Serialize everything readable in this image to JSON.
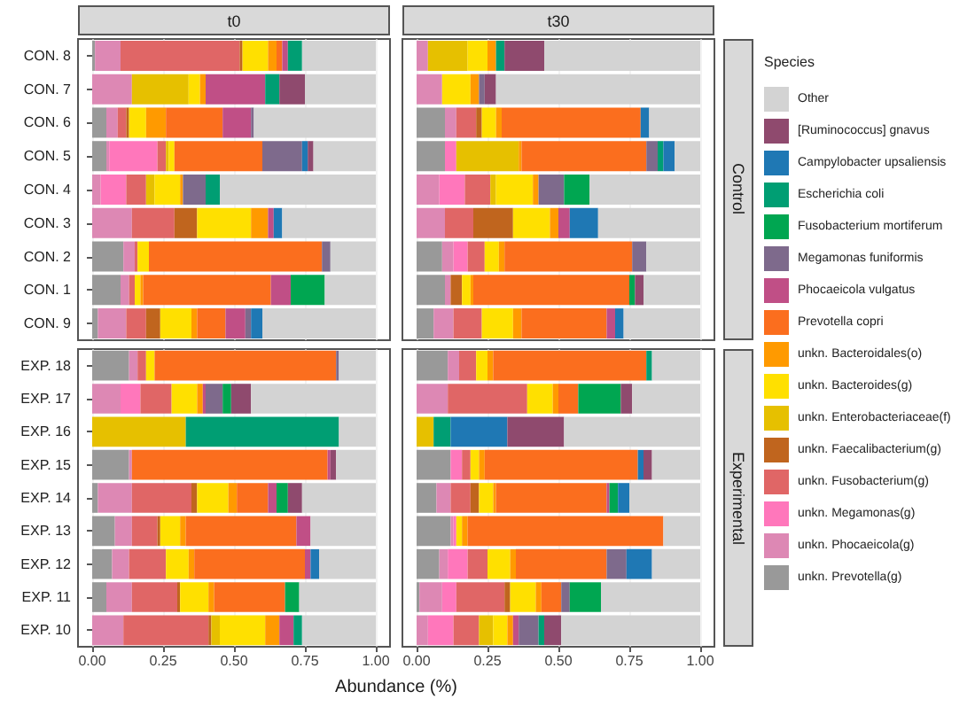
{
  "chart_data": [
    {
      "type": "bar",
      "orientation": "horizontal",
      "stacked": true,
      "title": "t0",
      "legend": "right",
      "legend_title": "Species",
      "grid": "x",
      "tick_labels": "y",
      "xlim": [
        -0.05,
        1.05
      ],
      "xticks": [
        0,
        0.25,
        0.5,
        0.75,
        1
      ],
      "categories": [
        "CON. 8",
        "CON. 7",
        "CON. 6",
        "CON. 5",
        "CON. 4",
        "CON. 3",
        "CON. 2",
        "CON. 1",
        "CON. 9"
      ],
      "series": [
        {
          "name": "unkn. Prevotella(g)",
          "color": "#999999",
          "values": [
            0.01,
            0,
            0.05,
            0.05,
            0,
            0,
            0.11,
            0.1,
            0.02
          ]
        },
        {
          "name": "unkn. Phocaeicola(g)",
          "color": "#dd88b4",
          "values": [
            0.09,
            0.14,
            0.04,
            0.01,
            0.03,
            0.14,
            0.04,
            0.03,
            0.1
          ]
        },
        {
          "name": "unkn. Megamonas(g)",
          "color": "#ff77bb",
          "values": [
            0,
            0,
            0,
            0.17,
            0.09,
            0,
            0,
            0,
            0
          ]
        },
        {
          "name": "unkn. Fusobacterium(g)",
          "color": "#e06666",
          "values": [
            0.42,
            0,
            0.03,
            0.03,
            0.07,
            0.15,
            0.01,
            0.02,
            0.07
          ]
        },
        {
          "name": "unkn. Faecalibacterium(g)",
          "color": "#c0651e",
          "values": [
            0.01,
            0,
            0.01,
            0,
            0,
            0.08,
            0,
            0,
            0.05
          ]
        },
        {
          "name": "unkn. Enterobacteriaceae(f)",
          "color": "#e6c000",
          "values": [
            0,
            0.2,
            0,
            0.01,
            0.03,
            0,
            0,
            0,
            0
          ]
        },
        {
          "name": "unkn. Bacteroides(g)",
          "color": "#ffe000",
          "values": [
            0.09,
            0.04,
            0.06,
            0.02,
            0.09,
            0.19,
            0.04,
            0.02,
            0.11
          ]
        },
        {
          "name": "unkn. Bacteroidales(o)",
          "color": "#ff9a00",
          "values": [
            0.03,
            0.02,
            0.07,
            0,
            0.01,
            0.06,
            0,
            0.01,
            0.02
          ]
        },
        {
          "name": "Prevotella copri",
          "color": "#fb6e1e",
          "values": [
            0.02,
            0,
            0.2,
            0.31,
            0,
            0,
            0.61,
            0.45,
            0.1
          ]
        },
        {
          "name": "Phocaeicola vulgatus",
          "color": "#c04f86",
          "values": [
            0.02,
            0.21,
            0.1,
            0,
            0,
            0.02,
            0,
            0.07,
            0.07
          ]
        },
        {
          "name": "Megamonas funiformis",
          "color": "#7e6a8c",
          "values": [
            0,
            0,
            0.01,
            0.14,
            0.08,
            0,
            0.03,
            0,
            0.02
          ]
        },
        {
          "name": "Fusobacterium mortiferum",
          "color": "#00a651",
          "values": [
            0,
            0,
            0,
            0,
            0,
            0,
            0,
            0.12,
            0
          ]
        },
        {
          "name": "Escherichia coli",
          "color": "#009e73",
          "values": [
            0.05,
            0.05,
            0,
            0,
            0.05,
            0,
            0,
            0,
            0
          ]
        },
        {
          "name": "Campylobacter upsaliensis",
          "color": "#1f78b4",
          "values": [
            0,
            0,
            0,
            0.02,
            0,
            0.03,
            0,
            0,
            0.04
          ]
        },
        {
          "name": "[Ruminococcus] gnavus",
          "color": "#8f4a6e",
          "values": [
            0,
            0.09,
            0,
            0.02,
            0,
            0,
            0,
            0,
            0
          ]
        },
        {
          "name": "Other",
          "color": "#d3d3d3",
          "values": [
            0.26,
            0.25,
            0.43,
            0.22,
            0.55,
            0.33,
            0.16,
            0.18,
            0.4
          ]
        }
      ]
    },
    {
      "type": "bar",
      "orientation": "horizontal",
      "stacked": true,
      "title": "t30",
      "annotations": [
        "Control"
      ],
      "grid": "x",
      "tick_labels": false,
      "xlim": [
        -0.05,
        1.05
      ],
      "xticks": [
        0,
        0.25,
        0.5,
        0.75,
        1
      ],
      "categories": [
        null,
        null,
        null,
        null,
        null,
        null,
        null,
        null,
        null
      ],
      "series": [
        {
          "name": "unkn. Prevotella(g)",
          "color": "#999999",
          "values": [
            0,
            0,
            0.1,
            0.1,
            0,
            0,
            0.09,
            0.1,
            0.06
          ]
        },
        {
          "name": "unkn. Phocaeicola(g)",
          "color": "#dd88b4",
          "values": [
            0.04,
            0.09,
            0.04,
            0,
            0.08,
            0.1,
            0.04,
            0.02,
            0.07
          ]
        },
        {
          "name": "unkn. Megamonas(g)",
          "color": "#ff77bb",
          "values": [
            0,
            0,
            0,
            0.04,
            0.09,
            0,
            0.05,
            0,
            0
          ]
        },
        {
          "name": "unkn. Fusobacterium(g)",
          "color": "#e06666",
          "values": [
            0,
            0,
            0.07,
            0,
            0.09,
            0.1,
            0.06,
            0,
            0.1
          ]
        },
        {
          "name": "unkn. Faecalibacterium(g)",
          "color": "#c0651e",
          "values": [
            0,
            0,
            0.02,
            0,
            0,
            0.14,
            0,
            0.04,
            0
          ]
        },
        {
          "name": "unkn. Enterobacteriaceae(f)",
          "color": "#e6c000",
          "values": [
            0.14,
            0,
            0,
            0.22,
            0.02,
            0,
            0,
            0,
            0
          ]
        },
        {
          "name": "unkn. Bacteroides(g)",
          "color": "#ffe000",
          "values": [
            0.07,
            0.1,
            0.05,
            0,
            0.13,
            0.13,
            0.05,
            0.03,
            0.11
          ]
        },
        {
          "name": "unkn. Bacteroidales(o)",
          "color": "#ff9a00",
          "values": [
            0.03,
            0.03,
            0.02,
            0.01,
            0.02,
            0.03,
            0.02,
            0.01,
            0.03
          ]
        },
        {
          "name": "Prevotella copri",
          "color": "#fb6e1e",
          "values": [
            0,
            0,
            0.49,
            0.44,
            0,
            0,
            0.45,
            0.55,
            0.3
          ]
        },
        {
          "name": "Phocaeicola vulgatus",
          "color": "#c04f86",
          "values": [
            0,
            0,
            0,
            0,
            0,
            0.04,
            0,
            0,
            0.03
          ]
        },
        {
          "name": "Megamonas funiformis",
          "color": "#7e6a8c",
          "values": [
            0,
            0.02,
            0,
            0.04,
            0.09,
            0,
            0.05,
            0,
            0
          ]
        },
        {
          "name": "Fusobacterium mortiferum",
          "color": "#00a651",
          "values": [
            0,
            0,
            0,
            0,
            0.09,
            0,
            0,
            0.02,
            0
          ]
        },
        {
          "name": "Escherichia coli",
          "color": "#009e73",
          "values": [
            0.03,
            0,
            0,
            0.02,
            0,
            0,
            0,
            0,
            0
          ]
        },
        {
          "name": "Campylobacter upsaliensis",
          "color": "#1f78b4",
          "values": [
            0,
            0,
            0.03,
            0.04,
            0,
            0.1,
            0,
            0,
            0.03
          ]
        },
        {
          "name": "[Ruminococcus] gnavus",
          "color": "#8f4a6e",
          "values": [
            0.14,
            0.04,
            0,
            0,
            0,
            0,
            0,
            0.03,
            0
          ]
        },
        {
          "name": "Other",
          "color": "#d3d3d3",
          "values": [
            0.55,
            0.72,
            0.18,
            0.09,
            0.39,
            0.36,
            0.19,
            0.2,
            0.27
          ]
        }
      ]
    },
    {
      "type": "bar",
      "orientation": "horizontal",
      "stacked": true,
      "xlabel": "Abundance (%)",
      "grid": "x",
      "xlim": [
        -0.05,
        1.05
      ],
      "xticks": [
        {
          "value": 0,
          "label": "0.00"
        },
        {
          "value": 0.25,
          "label": "0.25"
        },
        {
          "value": 0.5,
          "label": "0.50"
        },
        {
          "value": 0.75,
          "label": "0.75"
        },
        {
          "value": 1,
          "label": "1.00"
        }
      ],
      "categories": [
        "EXP. 18",
        "EXP. 17",
        "EXP. 16",
        "EXP. 15",
        "EXP. 14",
        "EXP. 13",
        "EXP. 12",
        "EXP. 11",
        "EXP. 10"
      ],
      "series": [
        {
          "name": "unkn. Prevotella(g)",
          "color": "#999999",
          "values": [
            0.13,
            0,
            0,
            0.13,
            0.02,
            0.08,
            0.07,
            0.05,
            0
          ]
        },
        {
          "name": "unkn. Phocaeicola(g)",
          "color": "#dd88b4",
          "values": [
            0.03,
            0.1,
            0,
            0.01,
            0.12,
            0.06,
            0.06,
            0.09,
            0.11
          ]
        },
        {
          "name": "unkn. Megamonas(g)",
          "color": "#ff77bb",
          "values": [
            0,
            0.07,
            0,
            0,
            0,
            0,
            0,
            0,
            0
          ]
        },
        {
          "name": "unkn. Fusobacterium(g)",
          "color": "#e06666",
          "values": [
            0.03,
            0.11,
            0,
            0,
            0.21,
            0.09,
            0.13,
            0.16,
            0.3
          ]
        },
        {
          "name": "unkn. Faecalibacterium(g)",
          "color": "#c0651e",
          "values": [
            0,
            0,
            0,
            0,
            0.02,
            0.01,
            0,
            0.01,
            0.01
          ]
        },
        {
          "name": "unkn. Enterobacteriaceae(f)",
          "color": "#e6c000",
          "values": [
            0,
            0,
            0.33,
            0,
            0,
            0,
            0,
            0,
            0.03
          ]
        },
        {
          "name": "unkn. Bacteroides(g)",
          "color": "#ffe000",
          "values": [
            0.03,
            0.09,
            0,
            0,
            0.11,
            0.07,
            0.08,
            0.1,
            0.16
          ]
        },
        {
          "name": "unkn. Bacteroidales(o)",
          "color": "#ff9a00",
          "values": [
            0,
            0.02,
            0,
            0,
            0.03,
            0.02,
            0.02,
            0.02,
            0.05
          ]
        },
        {
          "name": "Prevotella copri",
          "color": "#fb6e1e",
          "values": [
            0.64,
            0,
            0,
            0.69,
            0.11,
            0.39,
            0.39,
            0.25,
            0
          ]
        },
        {
          "name": "Phocaeicola vulgatus",
          "color": "#c04f86",
          "values": [
            0,
            0.01,
            0,
            0.01,
            0.03,
            0.05,
            0.02,
            0,
            0.05
          ]
        },
        {
          "name": "Megamonas funiformis",
          "color": "#7e6a8c",
          "values": [
            0.01,
            0.06,
            0,
            0,
            0,
            0,
            0,
            0,
            0
          ]
        },
        {
          "name": "Fusobacterium mortiferum",
          "color": "#00a651",
          "values": [
            0,
            0.03,
            0,
            0,
            0.04,
            0,
            0,
            0.05,
            0
          ]
        },
        {
          "name": "Escherichia coli",
          "color": "#009e73",
          "values": [
            0,
            0,
            0.54,
            0,
            0,
            0,
            0,
            0,
            0.03
          ]
        },
        {
          "name": "Campylobacter upsaliensis",
          "color": "#1f78b4",
          "values": [
            0,
            0,
            0,
            0,
            0,
            0,
            0.03,
            0,
            0
          ]
        },
        {
          "name": "[Ruminococcus] gnavus",
          "color": "#8f4a6e",
          "values": [
            0,
            0.07,
            0,
            0.02,
            0.05,
            0,
            0,
            0,
            0
          ]
        },
        {
          "name": "Other",
          "color": "#d3d3d3",
          "values": [
            0.13,
            0.44,
            0.13,
            0.14,
            0.26,
            0.23,
            0.2,
            0.27,
            0.26
          ]
        }
      ]
    },
    {
      "type": "bar",
      "orientation": "horizontal",
      "stacked": true,
      "annotations": [
        "Experimental"
      ],
      "grid": "x",
      "tick_labels": "x",
      "xlim": [
        -0.05,
        1.05
      ],
      "xticks": [
        {
          "value": 0,
          "label": "0.00"
        },
        {
          "value": 0.25,
          "label": "0.25"
        },
        {
          "value": 0.5,
          "label": "0.50"
        },
        {
          "value": 0.75,
          "label": "0.75"
        },
        {
          "value": 1,
          "label": "1.00"
        }
      ],
      "categories": [
        null,
        null,
        null,
        null,
        null,
        null,
        null,
        null,
        null
      ],
      "series": [
        {
          "name": "unkn. Prevotella(g)",
          "color": "#999999",
          "values": [
            0.11,
            0,
            0,
            0.12,
            0.07,
            0.12,
            0.08,
            0.01,
            0
          ]
        },
        {
          "name": "unkn. Phocaeicola(g)",
          "color": "#dd88b4",
          "values": [
            0.04,
            0.11,
            0,
            0,
            0.05,
            0.01,
            0.03,
            0.08,
            0.04
          ]
        },
        {
          "name": "unkn. Megamonas(g)",
          "color": "#ff77bb",
          "values": [
            0,
            0,
            0,
            0.04,
            0,
            0.01,
            0.07,
            0.05,
            0.09
          ]
        },
        {
          "name": "unkn. Fusobacterium(g)",
          "color": "#e06666",
          "values": [
            0.06,
            0.28,
            0,
            0.03,
            0.07,
            0,
            0.07,
            0.17,
            0.09
          ]
        },
        {
          "name": "unkn. Faecalibacterium(g)",
          "color": "#c0651e",
          "values": [
            0,
            0,
            0,
            0,
            0.03,
            0,
            0,
            0.02,
            0
          ]
        },
        {
          "name": "unkn. Enterobacteriaceae(f)",
          "color": "#e6c000",
          "values": [
            0,
            0,
            0.06,
            0,
            0,
            0,
            0,
            0,
            0.05
          ]
        },
        {
          "name": "unkn. Bacteroides(g)",
          "color": "#ffe000",
          "values": [
            0.04,
            0.09,
            0,
            0.03,
            0.05,
            0.02,
            0.08,
            0.09,
            0.05
          ]
        },
        {
          "name": "unkn. Bacteroidales(o)",
          "color": "#ff9a00",
          "values": [
            0.02,
            0.02,
            0,
            0.02,
            0.01,
            0.02,
            0.02,
            0.02,
            0.02
          ]
        },
        {
          "name": "Prevotella copri",
          "color": "#fb6e1e",
          "values": [
            0.54,
            0.07,
            0,
            0.54,
            0.39,
            0.69,
            0.32,
            0.07,
            0
          ]
        },
        {
          "name": "Phocaeicola vulgatus",
          "color": "#c04f86",
          "values": [
            0,
            0,
            0,
            0,
            0.01,
            0,
            0,
            0,
            0.02
          ]
        },
        {
          "name": "Megamonas funiformis",
          "color": "#7e6a8c",
          "values": [
            0,
            0,
            0,
            0,
            0,
            0,
            0.07,
            0.03,
            0.07
          ]
        },
        {
          "name": "Fusobacterium mortiferum",
          "color": "#00a651",
          "values": [
            0,
            0.15,
            0,
            0,
            0.03,
            0,
            0,
            0.11,
            0
          ]
        },
        {
          "name": "Escherichia coli",
          "color": "#009e73",
          "values": [
            0.02,
            0,
            0.06,
            0,
            0,
            0,
            0,
            0,
            0.02
          ]
        },
        {
          "name": "Campylobacter upsaliensis",
          "color": "#1f78b4",
          "values": [
            0,
            0,
            0.2,
            0.02,
            0.04,
            0,
            0.09,
            0,
            0
          ]
        },
        {
          "name": "[Ruminococcus] gnavus",
          "color": "#8f4a6e",
          "values": [
            0,
            0.04,
            0.2,
            0.03,
            0,
            0,
            0,
            0,
            0.06
          ]
        },
        {
          "name": "Other",
          "color": "#d3d3d3",
          "values": [
            0.17,
            0.24,
            0.48,
            0.17,
            0.25,
            0.13,
            0.17,
            0.35,
            0.49
          ]
        }
      ]
    }
  ]
}
